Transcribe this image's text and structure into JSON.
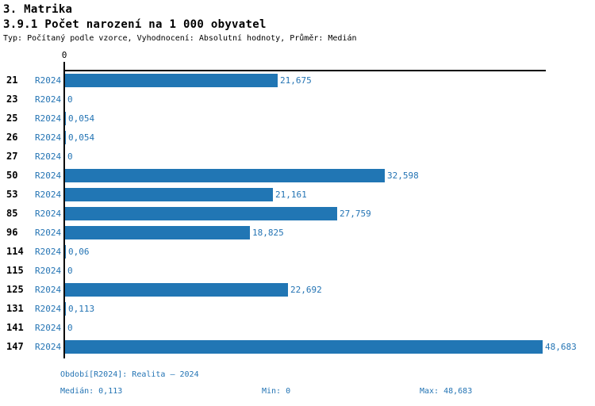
{
  "header": {
    "title": "3. Matrika",
    "subtitle": "3.9.1 Počet narození na 1 000 obyvatel",
    "meta": "Typ: Počítaný podle vzorce, Vyhodnocení: Absolutní hodnoty, Průměr: Medián"
  },
  "chart_data": {
    "type": "bar",
    "orientation": "horizontal",
    "series_label": "R2024",
    "categories": [
      "21",
      "23",
      "25",
      "26",
      "27",
      "50",
      "53",
      "85",
      "96",
      "114",
      "115",
      "125",
      "131",
      "141",
      "147"
    ],
    "values": [
      21.675,
      0,
      0.054,
      0.054,
      0,
      32.598,
      21.161,
      27.759,
      18.825,
      0.06,
      0,
      22.692,
      0.113,
      0,
      48.683
    ],
    "value_labels": [
      "21,675",
      "0",
      "0,054",
      "0,054",
      "0",
      "32,598",
      "21,161",
      "27,759",
      "18,825",
      "0,06",
      "0",
      "22,692",
      "0,113",
      "0",
      "48,683"
    ],
    "title": "3.9.1 Počet narození na 1 000 obyvatel",
    "xlabel": "",
    "ylabel": "",
    "xlim": [
      0,
      49
    ],
    "x_tick_labels": [
      "0"
    ],
    "grid": false,
    "legend_position": "none",
    "bar_color": "#2176b4",
    "label_color": "#2474b4"
  },
  "axis": {
    "zero_tick": "0"
  },
  "footer": {
    "period": "Období[R2024]: Realita – 2024",
    "median_label": "Medián: 0,113",
    "min_label": "Min: 0",
    "max_label": "Max: 48,683"
  }
}
